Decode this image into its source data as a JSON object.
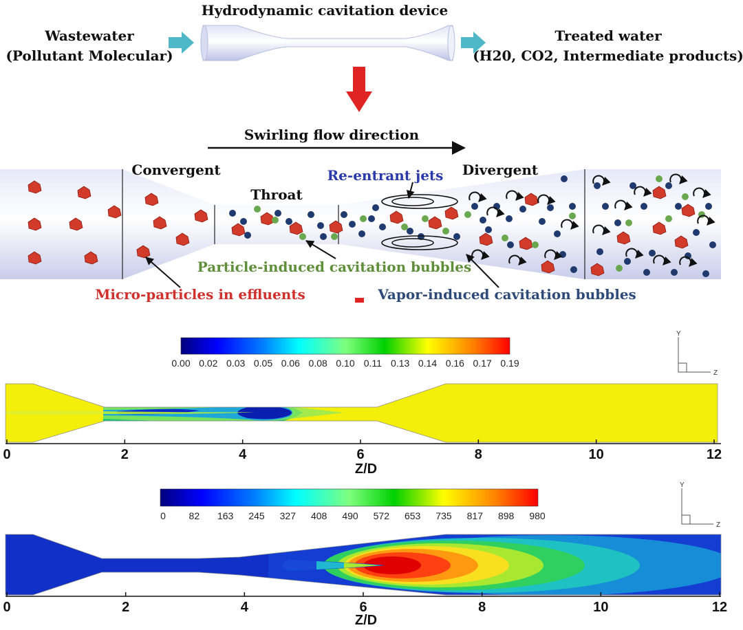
{
  "process": {
    "device_title": "Hydrodynamic cavitation device",
    "input_line1": "Wastewater",
    "input_line2": "(Pollutant Molecular)",
    "output_line1": "Treated water",
    "output_line2": "(H20, CO2, Intermediate products)"
  },
  "venturi": {
    "flow_direction": "Swirling flow direction",
    "convergent": "Convergent",
    "throat": "Throat",
    "reentrant": "Re-entrant jets",
    "divergent": "Divergent",
    "particle_bubbles": "Particle-induced cavitation bubbles",
    "micro_particles": "Micro-particles in effluents",
    "vapor_bubbles": "Vapor-induced cavitation bubbles"
  },
  "colors": {
    "arrow_cyan": "#4fb8c8",
    "arrow_red": "#e02424",
    "label_red": "#d0312d",
    "label_blue": "#2a3aa8",
    "label_green": "#5f8f3a",
    "label_navy": "#2d4a78",
    "bubble_navy": "#1f3a6e",
    "bubble_green": "#6aa84f",
    "particle_red": "#d23a2a"
  },
  "chart_data": [
    {
      "type": "heatmap",
      "title": "",
      "xlabel": "Z/D",
      "xlim": [
        0,
        12
      ],
      "x_ticks": [
        "0",
        "2",
        "4",
        "6",
        "8",
        "10",
        "12"
      ],
      "colorbar_ticks": [
        "0.00",
        "0.02",
        "0.03",
        "0.05",
        "0.06",
        "0.08",
        "0.10",
        "0.11",
        "0.13",
        "0.14",
        "0.16",
        "0.17",
        "0.19"
      ],
      "colorbar_range": [
        0.0,
        0.19
      ],
      "axis_triad": {
        "y": "Y",
        "z": "Z"
      }
    },
    {
      "type": "heatmap",
      "title": "",
      "xlabel": "Z/D",
      "xlim": [
        0,
        12
      ],
      "x_ticks": [
        "0",
        "2",
        "4",
        "6",
        "8",
        "10",
        "12"
      ],
      "colorbar_ticks": [
        "0",
        "82",
        "163",
        "245",
        "327",
        "408",
        "490",
        "572",
        "653",
        "735",
        "817",
        "898",
        "980"
      ],
      "colorbar_range": [
        0,
        980
      ],
      "axis_triad": {
        "y": "Y",
        "z": "Z"
      }
    }
  ]
}
